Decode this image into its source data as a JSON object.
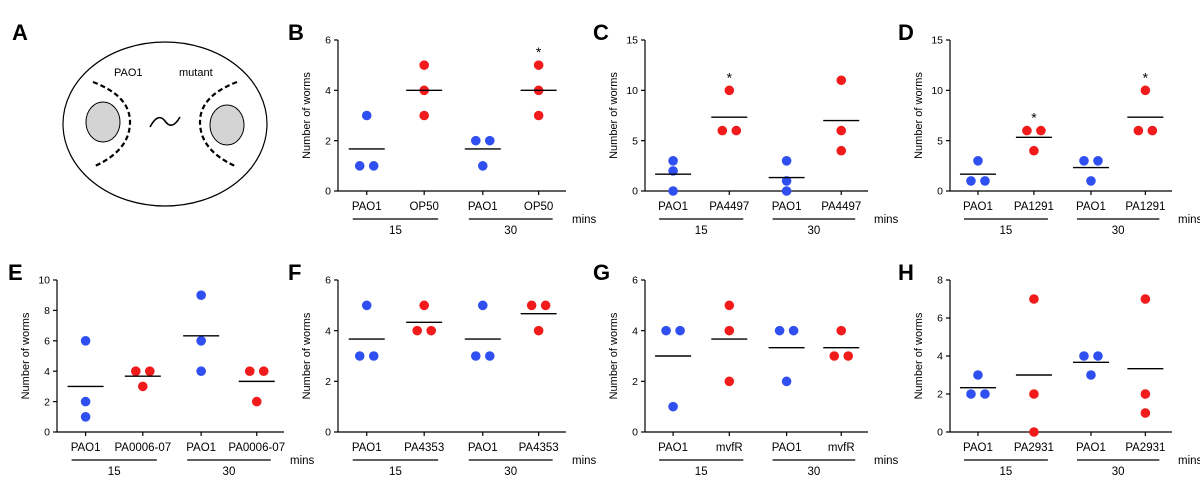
{
  "schematic": {
    "letter": "A",
    "left_label": "PAO1",
    "right_label": "mutant"
  },
  "colors": {
    "control": "#2f4ff0",
    "mutant": "#f21b1b",
    "axis": "#000000"
  },
  "chart_data": [
    {
      "letter": "B",
      "type": "scatter",
      "ylabel": "Number of worms",
      "ylim": [
        0,
        6
      ],
      "yticks": [
        0,
        2,
        4,
        6
      ],
      "categories": [
        "PAO1",
        "OP50",
        "PAO1",
        "OP50"
      ],
      "groups": [
        "15",
        "30"
      ],
      "group_unit": "mins",
      "series": [
        {
          "values": [
            3,
            1,
            1
          ],
          "mean": 1.67,
          "color": "control"
        },
        {
          "values": [
            5,
            4,
            3
          ],
          "mean": 4,
          "color": "mutant"
        },
        {
          "values": [
            2,
            2,
            1
          ],
          "mean": 1.67,
          "color": "control"
        },
        {
          "values": [
            5,
            4,
            3
          ],
          "mean": 4,
          "color": "mutant",
          "significance": "*"
        }
      ]
    },
    {
      "letter": "C",
      "type": "scatter",
      "ylabel": "Number of worms",
      "ylim": [
        0,
        15
      ],
      "yticks": [
        0,
        5,
        10,
        15
      ],
      "categories": [
        "PAO1",
        "PA4497",
        "PAO1",
        "PA4497"
      ],
      "groups": [
        "15",
        "30"
      ],
      "group_unit": "mins",
      "series": [
        {
          "values": [
            3,
            2,
            0
          ],
          "mean": 1.67,
          "color": "control"
        },
        {
          "values": [
            10,
            6,
            6
          ],
          "mean": 7.33,
          "color": "mutant",
          "significance": "*"
        },
        {
          "values": [
            3,
            1,
            0
          ],
          "mean": 1.33,
          "color": "control"
        },
        {
          "values": [
            11,
            6,
            4
          ],
          "mean": 7,
          "color": "mutant"
        }
      ]
    },
    {
      "letter": "D",
      "type": "scatter",
      "ylabel": "Number of worms",
      "ylim": [
        0,
        15
      ],
      "yticks": [
        0,
        5,
        10,
        15
      ],
      "categories": [
        "PAO1",
        "PA1291",
        "PAO1",
        "PA1291"
      ],
      "groups": [
        "15",
        "30"
      ],
      "group_unit": "mins",
      "series": [
        {
          "values": [
            3,
            1,
            1
          ],
          "mean": 1.67,
          "color": "control"
        },
        {
          "values": [
            6,
            6,
            4
          ],
          "mean": 5.33,
          "color": "mutant",
          "significance": "*"
        },
        {
          "values": [
            3,
            3,
            1
          ],
          "mean": 2.33,
          "color": "control"
        },
        {
          "values": [
            10,
            6,
            6
          ],
          "mean": 7.33,
          "color": "mutant",
          "significance": "*"
        }
      ]
    },
    {
      "letter": "E",
      "type": "scatter",
      "ylabel": "Number of worms",
      "ylim": [
        0,
        10
      ],
      "yticks": [
        0,
        2,
        4,
        6,
        8,
        10
      ],
      "categories": [
        "PAO1",
        "PA0006-07",
        "PAO1",
        "PA0006-07"
      ],
      "groups": [
        "15",
        "30"
      ],
      "group_unit": "mins",
      "series": [
        {
          "values": [
            6,
            2,
            1
          ],
          "mean": 3,
          "color": "control"
        },
        {
          "values": [
            4,
            4,
            3
          ],
          "mean": 3.67,
          "color": "mutant"
        },
        {
          "values": [
            9,
            6,
            4
          ],
          "mean": 6.33,
          "color": "control"
        },
        {
          "values": [
            4,
            4,
            2
          ],
          "mean": 3.33,
          "color": "mutant"
        }
      ]
    },
    {
      "letter": "F",
      "type": "scatter",
      "ylabel": "Number of worms",
      "ylim": [
        0,
        6
      ],
      "yticks": [
        0,
        2,
        4,
        6
      ],
      "categories": [
        "PAO1",
        "PA4353",
        "PAO1",
        "PA4353"
      ],
      "groups": [
        "15",
        "30"
      ],
      "group_unit": "mins",
      "series": [
        {
          "values": [
            5,
            3,
            3
          ],
          "mean": 3.67,
          "color": "control"
        },
        {
          "values": [
            5,
            4,
            4
          ],
          "mean": 4.33,
          "color": "mutant"
        },
        {
          "values": [
            5,
            3,
            3
          ],
          "mean": 3.67,
          "color": "control"
        },
        {
          "values": [
            5,
            5,
            4
          ],
          "mean": 4.67,
          "color": "mutant"
        }
      ]
    },
    {
      "letter": "G",
      "type": "scatter",
      "ylabel": "Number of worms",
      "ylim": [
        0,
        6
      ],
      "yticks": [
        0,
        2,
        4,
        6
      ],
      "categories": [
        "PAO1",
        "mvfR",
        "PAO1",
        "mvfR"
      ],
      "groups": [
        "15",
        "30"
      ],
      "group_unit": "mins",
      "series": [
        {
          "values": [
            4,
            4,
            1
          ],
          "mean": 3,
          "color": "control"
        },
        {
          "values": [
            5,
            4,
            2
          ],
          "mean": 3.67,
          "color": "mutant"
        },
        {
          "values": [
            4,
            4,
            2
          ],
          "mean": 3.33,
          "color": "control"
        },
        {
          "values": [
            4,
            3,
            3
          ],
          "mean": 3.33,
          "color": "mutant"
        }
      ]
    },
    {
      "letter": "H",
      "type": "scatter",
      "ylabel": "Number of worms",
      "ylim": [
        0,
        8
      ],
      "yticks": [
        0,
        2,
        4,
        6,
        8
      ],
      "categories": [
        "PAO1",
        "PA2931",
        "PAO1",
        "PA2931"
      ],
      "groups": [
        "15",
        "30"
      ],
      "group_unit": "mins",
      "series": [
        {
          "values": [
            3,
            2,
            2
          ],
          "mean": 2.33,
          "color": "control"
        },
        {
          "values": [
            7,
            2,
            0
          ],
          "mean": 3,
          "color": "mutant"
        },
        {
          "values": [
            4,
            4,
            3
          ],
          "mean": 3.67,
          "color": "control"
        },
        {
          "values": [
            7,
            2,
            1
          ],
          "mean": 3.33,
          "color": "mutant"
        }
      ]
    }
  ]
}
